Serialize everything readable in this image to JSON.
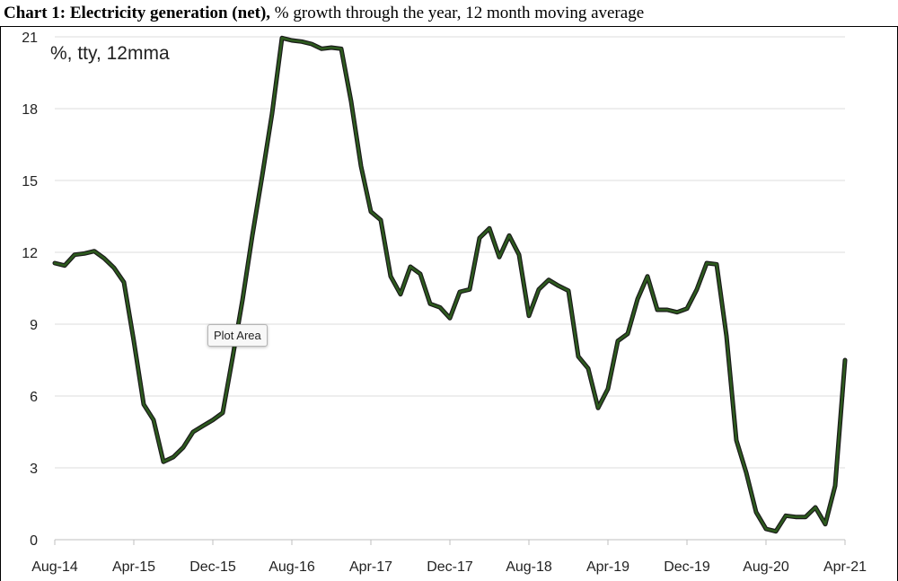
{
  "header": {
    "title_bold": "Chart 1: Electricity generation (net),",
    "title_rest": " % growth through the year, 12 month moving average"
  },
  "tooltip": {
    "label": "Plot Area"
  },
  "chart_data": {
    "type": "line",
    "title": "Chart 1: Electricity generation (net), % growth through the year, 12 month moving average",
    "unit_label": "%, tty, 12mma",
    "ylim": [
      0,
      21
    ],
    "yticks": [
      0,
      3,
      6,
      9,
      12,
      15,
      18,
      21
    ],
    "xtick_labels": [
      "Aug-14",
      "Apr-15",
      "Dec-15",
      "Aug-16",
      "Apr-17",
      "Dec-17",
      "Aug-18",
      "Apr-19",
      "Dec-19",
      "Aug-20",
      "Apr-21"
    ],
    "grid": true,
    "line_color": "#2d5a1e",
    "series": [
      {
        "x": [
          "Aug-14",
          "Sep-14",
          "Oct-14",
          "Nov-14",
          "Dec-14",
          "Jan-15",
          "Feb-15",
          "Mar-15",
          "Apr-15",
          "May-15",
          "Jun-15",
          "Jul-15",
          "Aug-15",
          "Sep-15",
          "Oct-15",
          "Nov-15",
          "Dec-15",
          "Jan-16",
          "Feb-16",
          "Mar-16",
          "Apr-16",
          "May-16",
          "Jun-16",
          "Jul-16",
          "Aug-16",
          "Sep-16",
          "Oct-16",
          "Nov-16",
          "Dec-16",
          "Jan-17",
          "Feb-17",
          "Mar-17",
          "Apr-17",
          "May-17",
          "Jun-17",
          "Jul-17",
          "Aug-17",
          "Sep-17",
          "Oct-17",
          "Nov-17",
          "Dec-17",
          "Jan-18",
          "Feb-18",
          "Mar-18",
          "Apr-18",
          "May-18",
          "Jun-18",
          "Jul-18",
          "Aug-18",
          "Sep-18",
          "Oct-18",
          "Nov-18",
          "Dec-18",
          "Jan-19",
          "Feb-19",
          "Mar-19",
          "Apr-19",
          "May-19",
          "Jun-19",
          "Jul-19",
          "Aug-19",
          "Sep-19",
          "Oct-19",
          "Nov-19",
          "Dec-19",
          "Jan-20",
          "Feb-20",
          "Mar-20",
          "Apr-20",
          "May-20",
          "Jun-20",
          "Jul-20",
          "Aug-20",
          "Sep-20",
          "Oct-20",
          "Nov-20",
          "Dec-20",
          "Jan-21",
          "Feb-21",
          "Mar-21",
          "Apr-21"
        ],
        "values": [
          11.55,
          11.45,
          11.9,
          11.95,
          12.05,
          11.75,
          11.35,
          10.75,
          8.3,
          5.65,
          5.0,
          3.25,
          3.45,
          3.85,
          4.5,
          4.75,
          5.0,
          5.3,
          7.6,
          10.0,
          12.7,
          15.2,
          17.8,
          20.95,
          20.85,
          20.8,
          20.7,
          20.5,
          20.55,
          20.5,
          18.3,
          15.6,
          13.7,
          13.35,
          11.0,
          10.25,
          11.4,
          11.1,
          9.85,
          9.7,
          9.25,
          10.35,
          10.45,
          12.6,
          13.0,
          11.8,
          12.7,
          11.9,
          9.35,
          10.45,
          10.85,
          10.6,
          10.4,
          7.65,
          7.15,
          5.5,
          6.3,
          8.3,
          8.6,
          10.05,
          11.0,
          9.6,
          9.6,
          9.5,
          9.65,
          10.45,
          11.55,
          11.5,
          8.5,
          4.15,
          2.8,
          1.15,
          0.45,
          0.35,
          1.0,
          0.95,
          0.95,
          1.35,
          0.65,
          2.25,
          7.5
        ]
      }
    ]
  }
}
